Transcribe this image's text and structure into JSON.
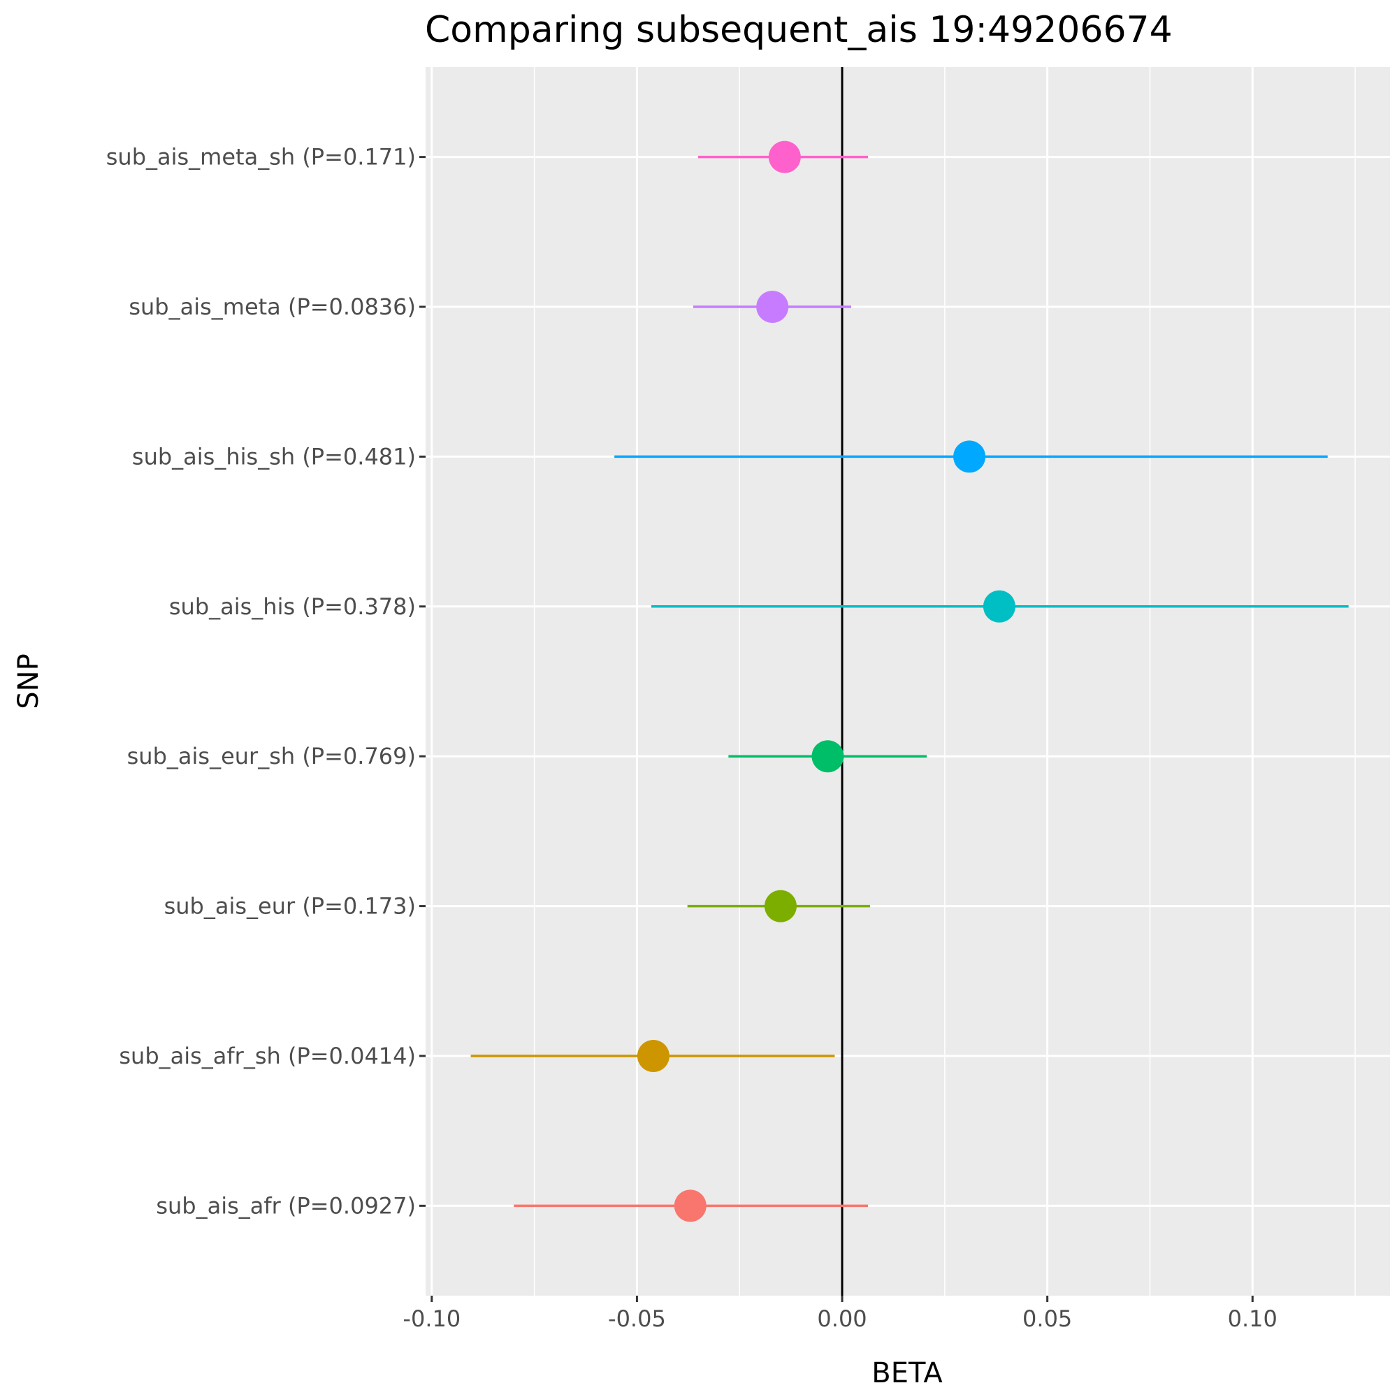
{
  "chart_data": {
    "type": "forest",
    "title": "Comparing subsequent_ais 19:49206674",
    "xlabel": "BETA",
    "ylabel": "SNP",
    "xlim": [
      -0.1015,
      0.1335
    ],
    "xticks": [
      -0.1,
      -0.05,
      0.0,
      0.05,
      0.1
    ],
    "xtick_labels": [
      "-0.10",
      "-0.05",
      "0.00",
      "0.05",
      "0.10"
    ],
    "reference_line": 0,
    "grid": true,
    "series": [
      {
        "label": "sub_ais_afr (P=0.0927)",
        "beta": -0.037,
        "lower": -0.08,
        "upper": 0.0063,
        "color": "#F8766D"
      },
      {
        "label": "sub_ais_afr_sh (P=0.0414)",
        "beta": -0.046,
        "lower": -0.0905,
        "upper": -0.0018,
        "color": "#CD9600"
      },
      {
        "label": "sub_ais_eur (P=0.173)",
        "beta": -0.015,
        "lower": -0.0377,
        "upper": 0.0068,
        "color": "#7CAE00"
      },
      {
        "label": "sub_ais_eur_sh (P=0.769)",
        "beta": -0.0035,
        "lower": -0.0277,
        "upper": 0.0206,
        "color": "#00BE67"
      },
      {
        "label": "sub_ais_his (P=0.378)",
        "beta": 0.0383,
        "lower": -0.0465,
        "upper": 0.1234,
        "color": "#00BFC4"
      },
      {
        "label": "sub_ais_his_sh (P=0.481)",
        "beta": 0.031,
        "lower": -0.0555,
        "upper": 0.1183,
        "color": "#00A9FF"
      },
      {
        "label": "sub_ais_meta (P=0.0836)",
        "beta": -0.017,
        "lower": -0.0363,
        "upper": 0.0022,
        "color": "#C77CFF"
      },
      {
        "label": "sub_ais_meta_sh (P=0.171)",
        "beta": -0.014,
        "lower": -0.0351,
        "upper": 0.0063,
        "color": "#FF61CC"
      }
    ]
  }
}
